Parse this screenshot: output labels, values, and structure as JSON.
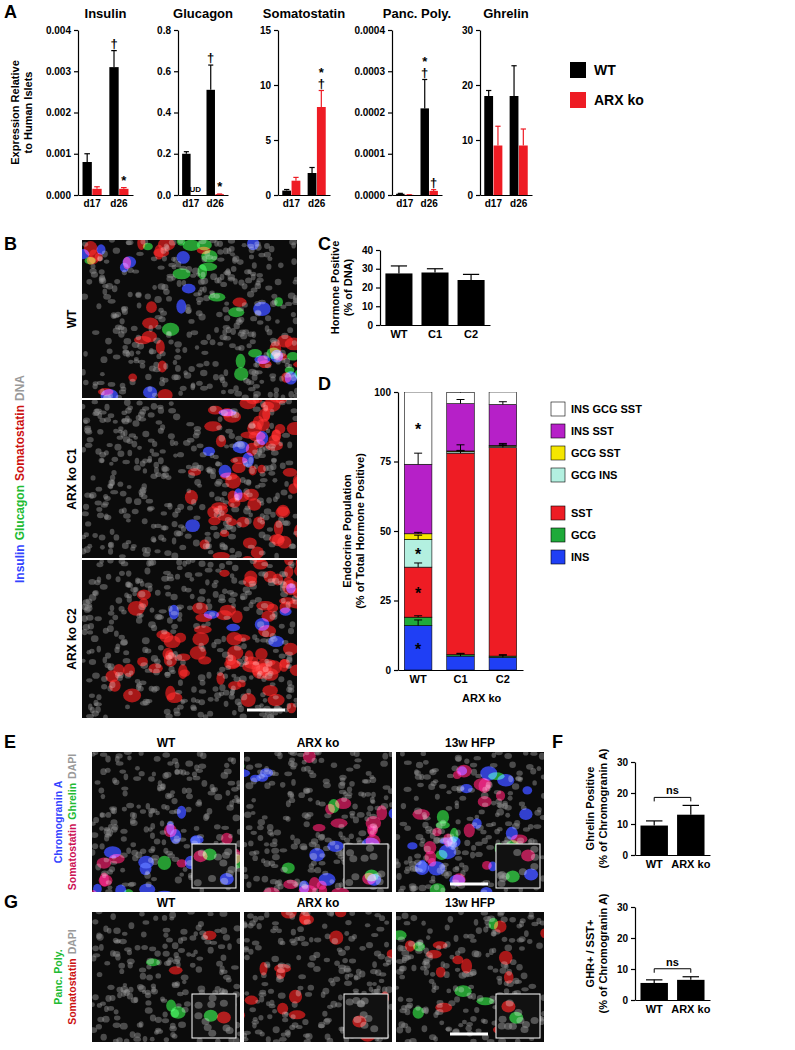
{
  "panel_labels": [
    "A",
    "B",
    "C",
    "D",
    "E",
    "F",
    "G"
  ],
  "chart_data": [
    {
      "type": "bar",
      "title": "Insulin",
      "y_label": [
        "Expression Relative",
        "to Human Islets"
      ],
      "categories": [
        "d17",
        "d26"
      ],
      "series": [
        {
          "name": "WT",
          "color": "#000000",
          "values": [
            0.0008,
            0.0031
          ],
          "errors": [
            0.0002,
            0.0004
          ]
        },
        {
          "name": "ARX ko",
          "color": "#ee1c24",
          "values": [
            0.00015,
            0.00015
          ],
          "errors": [
            5e-05,
            3e-05
          ]
        }
      ],
      "ylim": [
        0,
        0.004
      ],
      "yticks": [
        {
          "value": 0,
          "label": "0.000"
        },
        0.001,
        0.002,
        0.003,
        0.004
      ],
      "annotations": [
        {
          "text": "†",
          "series": "WT",
          "category": "d26"
        },
        {
          "text": "*",
          "series": "ARX ko",
          "category": "d26"
        }
      ],
      "legend": "right"
    },
    {
      "type": "bar",
      "title": "Glucagon",
      "categories": [
        "d17",
        "d26"
      ],
      "series": [
        {
          "name": "WT",
          "color": "#000000",
          "values": [
            0.2,
            0.51
          ],
          "errors": [
            0.01,
            0.12
          ]
        },
        {
          "name": "ARX ko",
          "color": "#ee1c24",
          "values": [
            null,
            0.004
          ],
          "errors": [
            null,
            0.001
          ]
        }
      ],
      "ylim": [
        0,
        0.8
      ],
      "yticks": [
        {
          "value": 0,
          "label": "0.0"
        },
        0.2,
        0.4,
        0.6,
        0.8
      ],
      "annotations": [
        {
          "text": "UD",
          "series": "ARX ko",
          "category": "d17"
        },
        {
          "text": "†",
          "series": "WT",
          "category": "d26"
        },
        {
          "text": "*",
          "series": "ARX ko",
          "category": "d26"
        }
      ]
    },
    {
      "type": "bar",
      "title": "Somatostatin",
      "categories": [
        "d17",
        "d26"
      ],
      "series": [
        {
          "name": "WT",
          "color": "#000000",
          "values": [
            0.4,
            2.0
          ],
          "errors": [
            0.1,
            0.5
          ]
        },
        {
          "name": "ARX ko",
          "color": "#ee1c24",
          "values": [
            1.3,
            8.0
          ],
          "errors": [
            0.3,
            1.5
          ]
        }
      ],
      "ylim": [
        0,
        15
      ],
      "yticks": [
        0,
        5,
        10,
        15
      ],
      "annotations": [
        {
          "text": "†",
          "series": "ARX ko",
          "category": "d26"
        },
        {
          "text": "*",
          "series": "ARX ko",
          "category": "d26"
        }
      ]
    },
    {
      "type": "bar",
      "title": "Panc. Poly.",
      "categories": [
        "d17",
        "d26"
      ],
      "series": [
        {
          "name": "WT",
          "color": "#000000",
          "values": [
            3e-06,
            0.00021
          ],
          "errors": [
            1e-06,
            7e-05
          ]
        },
        {
          "name": "ARX ko",
          "color": "#ee1c24",
          "values": [
            5e-07,
            1e-05
          ],
          "errors": [
            2e-07,
            3e-06
          ]
        }
      ],
      "ylim": [
        0,
        0.0004
      ],
      "yticks": [
        {
          "value": 0,
          "label": "0.0000"
        },
        0.0001,
        0.0002,
        0.0003,
        0.0004
      ],
      "annotations": [
        {
          "text": "†",
          "series": "WT",
          "category": "d26"
        },
        {
          "text": "*",
          "series": "WT",
          "category": "d26"
        },
        {
          "text": "†",
          "series": "ARX ko",
          "category": "d26"
        }
      ]
    },
    {
      "type": "bar",
      "title": "Ghrelin",
      "categories": [
        "d17",
        "d26"
      ],
      "series": [
        {
          "name": "WT",
          "color": "#000000",
          "values": [
            18,
            18
          ],
          "errors": [
            1,
            5.5
          ]
        },
        {
          "name": "ARX ko",
          "color": "#ee1c24",
          "values": [
            9,
            9
          ],
          "errors": [
            3.5,
            3
          ]
        }
      ],
      "ylim": [
        0,
        30
      ],
      "yticks": [
        0,
        10,
        20,
        30
      ]
    },
    {
      "type": "bar",
      "y_label": [
        "Hormone Positive",
        "(% of DNA)"
      ],
      "categories": [
        "WT",
        "C1",
        "C2"
      ],
      "values": [
        27.5,
        28,
        24
      ],
      "errors": [
        4,
        2,
        3
      ],
      "color": "#000000",
      "ylim": [
        0,
        40
      ],
      "yticks": [
        0,
        10,
        20,
        30,
        40
      ]
    },
    {
      "type": "bar",
      "stacked": true,
      "y_label": [
        "Endocrine Population",
        "(% of Total Hormone Positive)"
      ],
      "x_label": "ARX ko",
      "categories": [
        "WT",
        "C1",
        "C2"
      ],
      "series": [
        {
          "name": "INS",
          "color": "#1f3ff5",
          "values": [
            16,
            5,
            4.5
          ],
          "errors": [
            2,
            1,
            1
          ]
        },
        {
          "name": "GCG",
          "color": "#1faa3a",
          "values": [
            3,
            0.5,
            0.5
          ],
          "errors": [
            0.5,
            0.3,
            0.3
          ]
        },
        {
          "name": "SST",
          "color": "#ee1c24",
          "values": [
            18,
            72.5,
            75
          ],
          "errors": [
            1.5,
            3,
            1.5
          ]
        },
        {
          "name": "GCG INS",
          "color": "#b3f0e0",
          "values": [
            10,
            0.5,
            0.5
          ],
          "errors": [
            1.5,
            0.3,
            0.3
          ]
        },
        {
          "name": "GCG SST",
          "color": "#f5e600",
          "values": [
            2,
            0.3,
            0.3
          ],
          "errors": [
            0.5,
            0.2,
            0.2
          ]
        },
        {
          "name": "INS SST",
          "color": "#b620c8",
          "values": [
            25,
            17,
            14.7
          ],
          "errors": [
            4,
            1.5,
            1
          ]
        },
        {
          "name": "INS GCG SST",
          "color": "#ffffff",
          "values": [
            26,
            4,
            4.5
          ],
          "errors": [
            3,
            1,
            1
          ]
        }
      ],
      "ylim": [
        0,
        100
      ],
      "yticks": [
        0,
        25,
        50,
        75,
        100
      ],
      "annotations": [
        {
          "text": "*",
          "series": "INS GCG SST",
          "category": "WT"
        },
        {
          "text": "*",
          "series": "GCG INS",
          "category": "WT"
        },
        {
          "text": "*",
          "series": "SST",
          "category": "WT"
        },
        {
          "text": "*",
          "series": "INS",
          "category": "WT"
        }
      ],
      "legend": "right"
    },
    {
      "type": "bar",
      "y_label": [
        "Ghrelin Positive",
        "(% of Chromogranin A)"
      ],
      "categories": [
        "WT",
        "ARX ko"
      ],
      "values": [
        9.5,
        13
      ],
      "errors": [
        1.5,
        3
      ],
      "color": "#000000",
      "ylim": [
        0,
        30
      ],
      "yticks": [
        0,
        10,
        20,
        30
      ],
      "annotations": [
        {
          "text": "ns"
        }
      ]
    },
    {
      "type": "bar",
      "y_label": [
        "GHR+ / SST+",
        "(% of Chromogranin A)"
      ],
      "categories": [
        "WT",
        "ARX ko"
      ],
      "values": [
        5.5,
        6.5
      ],
      "errors": [
        1,
        1
      ],
      "color": "#000000",
      "ylim": [
        0,
        30
      ],
      "yticks": [
        0,
        10,
        20,
        30
      ],
      "annotations": [
        {
          "text": "ns"
        }
      ]
    }
  ],
  "images": [
    {
      "stains": [
        {
          "text": "Insulin",
          "color": "#3344ff"
        },
        {
          "text": "Glucagon",
          "color": "#22bb33"
        },
        {
          "text": "Somatostatin",
          "color": "#cc1111"
        },
        {
          "text": "DNA",
          "color": "#9a9a9a"
        }
      ],
      "labels": [
        "WT",
        "ARX ko C1",
        "ARX ko C2"
      ]
    },
    {
      "stains": [
        {
          "text": "Chromogranin A",
          "color": "#3344ff"
        },
        {
          "text": "Somatostatin",
          "color": "#cc1155"
        },
        {
          "text": "Ghrelin",
          "color": "#22bb33"
        },
        {
          "text": "DAPI",
          "color": "#9a9a9a"
        }
      ],
      "labels": [
        "WT",
        "ARX ko",
        "13w HFP"
      ]
    },
    {
      "stains": [
        {
          "text": "Panc. Poly.",
          "color": "#22bb33"
        },
        {
          "text": "Somatostatin",
          "color": "#cc1111"
        },
        {
          "text": "DAPI",
          "color": "#9a9a9a"
        }
      ],
      "labels": [
        "WT",
        "ARX ko",
        "13w HFP"
      ]
    }
  ]
}
